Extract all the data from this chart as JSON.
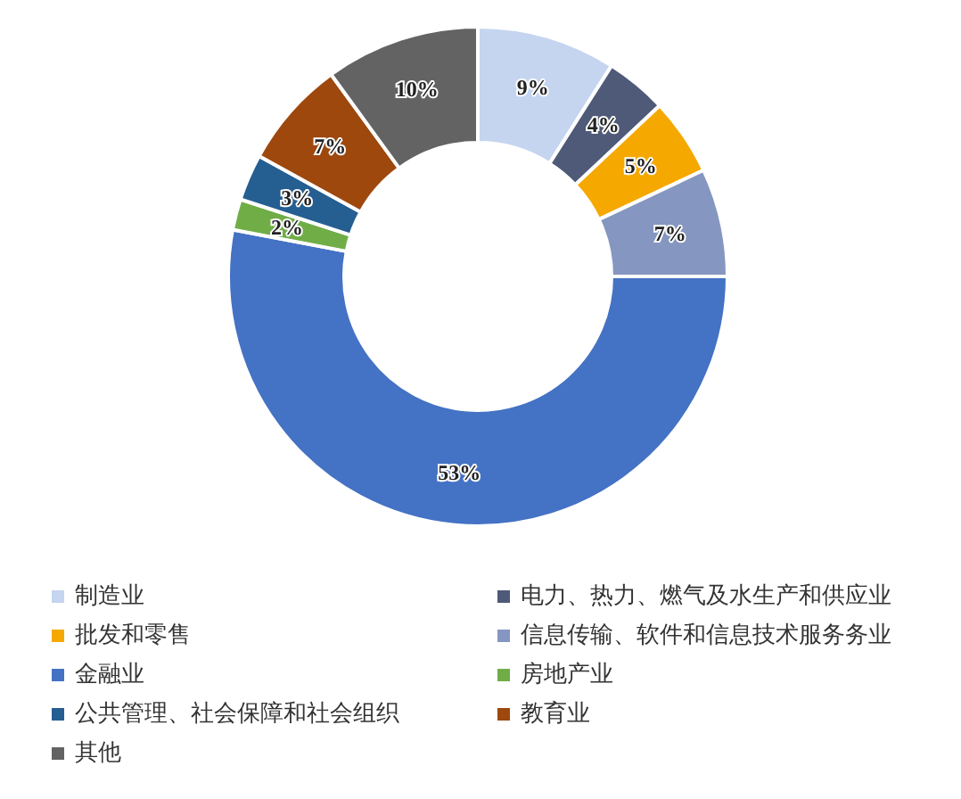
{
  "chart_data": {
    "type": "donut",
    "categories": [
      "制造业",
      "电力、热力、燃气及水生产和供应业",
      "批发和零售",
      "信息传输、软件和信息技术服务务业",
      "金融业",
      "房地产业",
      "公共管理、社会保障和社会组织",
      "教育业",
      "其他"
    ],
    "values": [
      9,
      4,
      5,
      7,
      53,
      2,
      3,
      7,
      10
    ],
    "value_labels": [
      "9%",
      "4%",
      "5%",
      "7%",
      "53%",
      "2%",
      "3%",
      "7%",
      "10%"
    ],
    "colors": [
      "#c5d5f0",
      "#4f5a78",
      "#f5a800",
      "#8596c0",
      "#4472c4",
      "#70ad47",
      "#255e91",
      "#9e480e",
      "#636363"
    ],
    "legend": "bottom"
  }
}
